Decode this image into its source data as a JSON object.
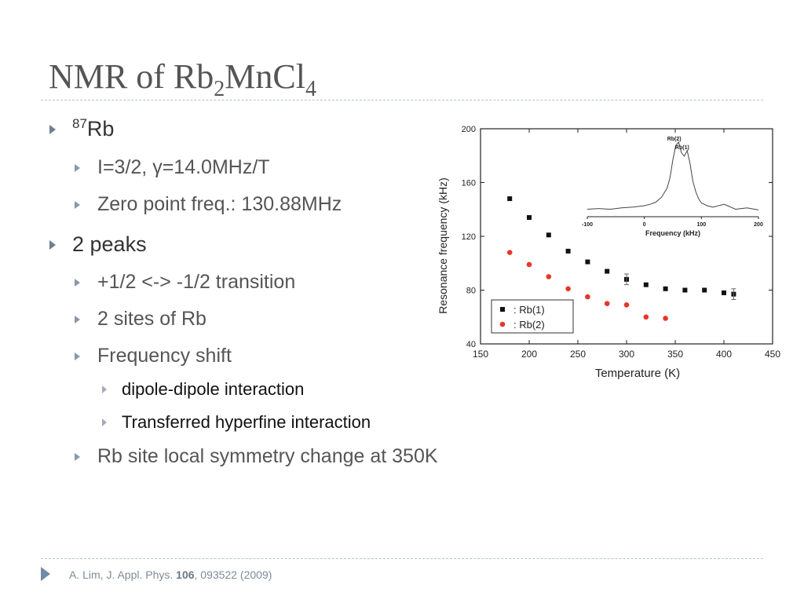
{
  "slide": {
    "title_main": "NMR of Rb",
    "title_sub1": "2",
    "title_mid": "MnCl",
    "title_sub2": "4"
  },
  "bullets": {
    "b1_sup": "87",
    "b1_text": "Rb",
    "b1a": "I=3/2, γ=14.0MHz/T",
    "b1b": "Zero point freq.: 130.88MHz",
    "b2": "2 peaks",
    "b2a": "+1/2 <-> -1/2 transition",
    "b2b": "2 sites of Rb",
    "b2c": "Frequency shift",
    "b2c1": "dipole-dipole interaction",
    "b2c2": "Transferred hyperfine interaction",
    "b2d": "Rb site local symmetry change at 350K"
  },
  "footer": {
    "authors": "A. Lim, J. Appl. Phys. ",
    "volume": "106",
    "rest": ", 093522 (2009)"
  },
  "chart_data": [
    {
      "type": "scatter",
      "xlabel": "Temperature (K)",
      "ylabel": "Resonance frequency (kHz)",
      "xlim": [
        150,
        450
      ],
      "ylim": [
        40,
        200
      ],
      "xticks": [
        150,
        200,
        250,
        300,
        350,
        400,
        450
      ],
      "yticks": [
        40,
        80,
        120,
        160,
        200
      ],
      "legend_position": "bottom-left",
      "series": [
        {
          "name": "Rb(1)",
          "color": "#111111",
          "marker": "square",
          "x": [
            180,
            200,
            220,
            240,
            260,
            280,
            300,
            320,
            340,
            360,
            380,
            400,
            410
          ],
          "y": [
            148,
            134,
            121,
            109,
            101,
            94,
            88,
            84,
            81,
            80,
            80,
            78,
            77
          ]
        },
        {
          "name": "Rb(2)",
          "color": "#e8362a",
          "marker": "circle",
          "x": [
            180,
            200,
            220,
            240,
            260,
            280,
            300,
            320,
            340
          ],
          "y": [
            108,
            99,
            90,
            81,
            75,
            70,
            69,
            60,
            59
          ]
        }
      ],
      "legend_labels": [
        ": Rb(1)",
        ": Rb(2)"
      ]
    },
    {
      "type": "line",
      "xlabel": "Frequency (kHz)",
      "xlim": [
        -100,
        200
      ],
      "xticks": [
        -100,
        0,
        100,
        200
      ],
      "peak_labels": [
        "Rb(2)",
        "Rb(1)"
      ],
      "x": [
        -100,
        -80,
        -60,
        -40,
        -20,
        0,
        10,
        20,
        30,
        40,
        45,
        50,
        55,
        60,
        65,
        70,
        75,
        80,
        85,
        90,
        95,
        100,
        110,
        120,
        140,
        160,
        180,
        200
      ],
      "y": [
        0.05,
        0.06,
        0.05,
        0.07,
        0.08,
        0.1,
        0.12,
        0.15,
        0.22,
        0.35,
        0.5,
        0.75,
        0.95,
        1.0,
        0.85,
        0.8,
        0.88,
        0.7,
        0.45,
        0.3,
        0.2,
        0.14,
        0.1,
        0.08,
        0.12,
        0.05,
        0.07,
        0.04
      ]
    }
  ]
}
